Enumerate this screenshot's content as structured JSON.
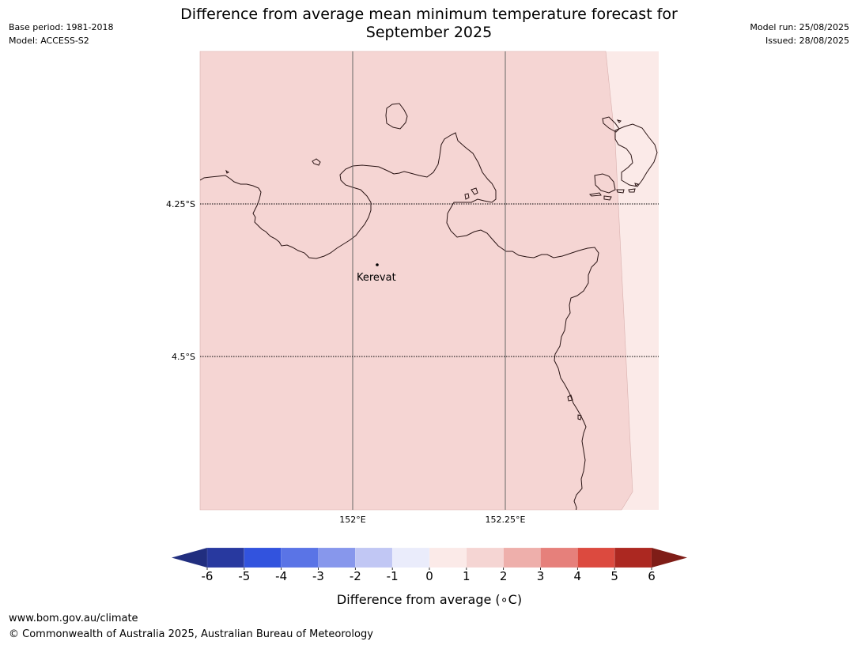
{
  "header": {
    "title_line1": "Difference from average mean minimum temperature forecast for",
    "title_line2": "September 2025",
    "base_period": "Base period: 1981-2018",
    "model": "Model: ACCESS-S2",
    "model_run": "Model run: 25/08/2025",
    "issued": "Issued: 28/08/2025"
  },
  "map": {
    "place_label": "Kerevat",
    "lat_labels": [
      "4.25°S",
      "4.5°S"
    ],
    "lon_labels": [
      "152°E",
      "152.25°E"
    ],
    "fill_main": "#f5d5d3",
    "fill_light": "#fbeae8",
    "coastline_color": "#2a1414",
    "gridline_color": "#666666"
  },
  "colorbar": {
    "label": "Difference from average (∘C)",
    "ticks": [
      "-6",
      "-5",
      "-4",
      "-3",
      "-2",
      "-1",
      "0",
      "1",
      "2",
      "3",
      "4",
      "5",
      "6"
    ],
    "colors": [
      "#28399f",
      "#3253de",
      "#5a74e6",
      "#8797ec",
      "#c1c7f4",
      "#eaecfb",
      "#fbeae8",
      "#f5d5d3",
      "#eeafab",
      "#e6807b",
      "#dc4a3f",
      "#ac2821"
    ],
    "under_color": "#212e7f",
    "over_color": "#7f1d17"
  },
  "footer": {
    "url": "www.bom.gov.au/climate",
    "copyright": "© Commonwealth of Australia 2025, Australian Bureau of Meteorology"
  }
}
